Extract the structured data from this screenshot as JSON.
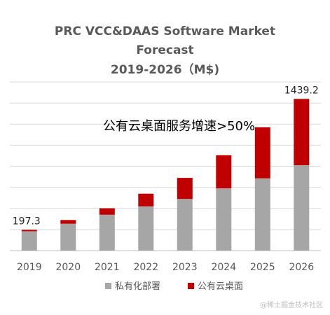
{
  "title": {
    "line1": "PRC VCC&DAAS Software Market",
    "line2": "Forecast",
    "line3": "2019-2026（M$)"
  },
  "annotation": "公有云桌面服务增速>50%",
  "watermark": "@稀土掘金技术社区",
  "chart_data": {
    "type": "bar",
    "stacked": true,
    "title": "PRC VCC&DAAS Software Market Forecast 2019-2026（M$)",
    "categories": [
      "2019",
      "2020",
      "2021",
      "2022",
      "2023",
      "2024",
      "2025",
      "2026"
    ],
    "series": [
      {
        "name": "私有化部署",
        "color": "#a6a6a6",
        "values": [
          183,
          255,
          340,
          420,
          490,
          590,
          685,
          810
        ]
      },
      {
        "name": "公有云桌面",
        "color": "#c00000",
        "values": [
          14,
          35,
          62,
          120,
          200,
          315,
          485,
          629
        ]
      }
    ],
    "data_labels": [
      {
        "category": "2019",
        "text": "197.3"
      },
      {
        "category": "2026",
        "text": "1439.2"
      }
    ],
    "ylim": [
      0,
      1700
    ],
    "legend_position": "bottom",
    "grid": true
  }
}
